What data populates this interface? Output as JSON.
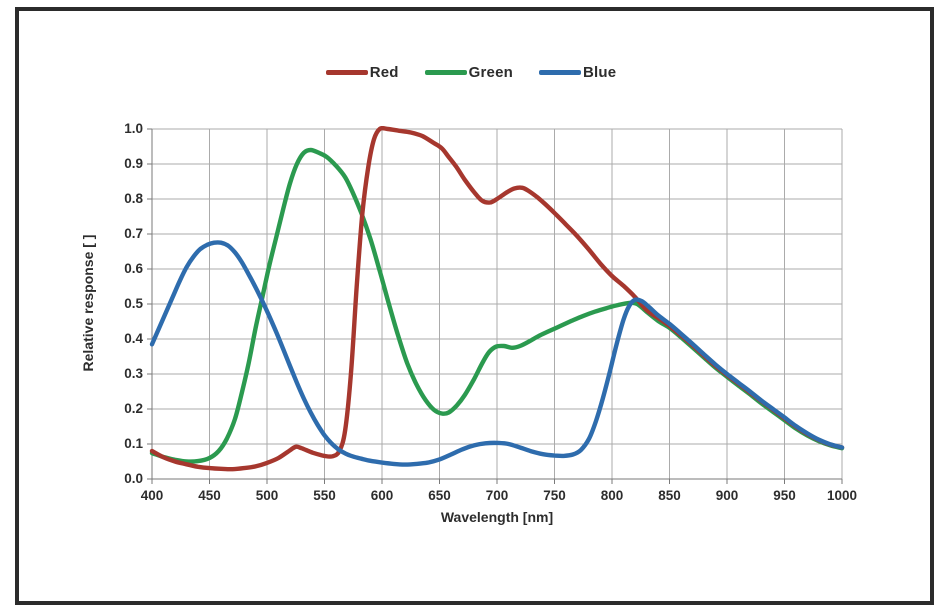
{
  "style": {
    "background": "#ffffff",
    "frame_border": "#2b2b2b",
    "grid_color": "#ababab",
    "axis_color": "#7a7a7a",
    "text_color": "#2d2d2d"
  },
  "chart_data": {
    "type": "line",
    "title": "",
    "xlabel": "Wavelength [nm]",
    "ylabel": "Relative response [ ]",
    "xlim": [
      400,
      1000
    ],
    "ylim": [
      0.0,
      1.0
    ],
    "x_ticks": [
      400,
      450,
      500,
      550,
      600,
      650,
      700,
      750,
      800,
      850,
      900,
      950,
      1000
    ],
    "y_tick_labels": [
      "0.0",
      "0.1",
      "0.2",
      "0.3",
      "0.4",
      "0.5",
      "0.6",
      "0.7",
      "0.8",
      "0.9",
      "1.0"
    ],
    "grid": true,
    "legend_position": "top-center",
    "draw_order": [
      "Green",
      "Red",
      "Blue"
    ],
    "series": [
      {
        "name": "Red",
        "color": "#a6372e",
        "points": [
          [
            400,
            0.08
          ],
          [
            410,
            0.062
          ],
          [
            420,
            0.05
          ],
          [
            430,
            0.042
          ],
          [
            440,
            0.035
          ],
          [
            450,
            0.031
          ],
          [
            460,
            0.029
          ],
          [
            470,
            0.028
          ],
          [
            480,
            0.031
          ],
          [
            490,
            0.036
          ],
          [
            500,
            0.046
          ],
          [
            510,
            0.06
          ],
          [
            520,
            0.082
          ],
          [
            525,
            0.092
          ],
          [
            530,
            0.088
          ],
          [
            540,
            0.075
          ],
          [
            550,
            0.066
          ],
          [
            557,
            0.065
          ],
          [
            563,
            0.08
          ],
          [
            568,
            0.14
          ],
          [
            573,
            0.3
          ],
          [
            578,
            0.55
          ],
          [
            583,
            0.76
          ],
          [
            588,
            0.89
          ],
          [
            593,
            0.97
          ],
          [
            598,
            1.0
          ],
          [
            605,
            1.0
          ],
          [
            615,
            0.995
          ],
          [
            625,
            0.99
          ],
          [
            635,
            0.98
          ],
          [
            645,
            0.96
          ],
          [
            652,
            0.945
          ],
          [
            658,
            0.92
          ],
          [
            665,
            0.89
          ],
          [
            672,
            0.855
          ],
          [
            680,
            0.82
          ],
          [
            687,
            0.795
          ],
          [
            694,
            0.79
          ],
          [
            700,
            0.8
          ],
          [
            708,
            0.818
          ],
          [
            715,
            0.83
          ],
          [
            722,
            0.832
          ],
          [
            728,
            0.822
          ],
          [
            735,
            0.805
          ],
          [
            742,
            0.785
          ],
          [
            750,
            0.76
          ],
          [
            760,
            0.727
          ],
          [
            770,
            0.693
          ],
          [
            780,
            0.655
          ],
          [
            790,
            0.615
          ],
          [
            800,
            0.58
          ],
          [
            810,
            0.552
          ],
          [
            820,
            0.52
          ],
          [
            830,
            0.483
          ],
          [
            840,
            0.46
          ],
          [
            850,
            0.437
          ],
          [
            860,
            0.41
          ],
          [
            870,
            0.382
          ],
          [
            880,
            0.352
          ],
          [
            890,
            0.323
          ],
          [
            900,
            0.297
          ],
          [
            910,
            0.272
          ],
          [
            920,
            0.247
          ],
          [
            930,
            0.222
          ],
          [
            940,
            0.198
          ],
          [
            950,
            0.173
          ],
          [
            960,
            0.149
          ],
          [
            970,
            0.128
          ],
          [
            980,
            0.111
          ],
          [
            990,
            0.098
          ],
          [
            1000,
            0.09
          ]
        ]
      },
      {
        "name": "Green",
        "color": "#2b9a4f",
        "points": [
          [
            400,
            0.074
          ],
          [
            410,
            0.063
          ],
          [
            420,
            0.055
          ],
          [
            430,
            0.05
          ],
          [
            440,
            0.051
          ],
          [
            450,
            0.06
          ],
          [
            458,
            0.08
          ],
          [
            465,
            0.115
          ],
          [
            472,
            0.17
          ],
          [
            478,
            0.245
          ],
          [
            484,
            0.33
          ],
          [
            490,
            0.43
          ],
          [
            496,
            0.52
          ],
          [
            502,
            0.61
          ],
          [
            508,
            0.69
          ],
          [
            514,
            0.77
          ],
          [
            520,
            0.845
          ],
          [
            526,
            0.9
          ],
          [
            532,
            0.932
          ],
          [
            538,
            0.94
          ],
          [
            545,
            0.932
          ],
          [
            552,
            0.92
          ],
          [
            560,
            0.895
          ],
          [
            568,
            0.862
          ],
          [
            575,
            0.815
          ],
          [
            582,
            0.76
          ],
          [
            590,
            0.685
          ],
          [
            598,
            0.595
          ],
          [
            606,
            0.5
          ],
          [
            614,
            0.41
          ],
          [
            622,
            0.33
          ],
          [
            630,
            0.27
          ],
          [
            638,
            0.225
          ],
          [
            645,
            0.198
          ],
          [
            652,
            0.187
          ],
          [
            658,
            0.19
          ],
          [
            665,
            0.21
          ],
          [
            672,
            0.24
          ],
          [
            680,
            0.285
          ],
          [
            687,
            0.33
          ],
          [
            693,
            0.362
          ],
          [
            699,
            0.378
          ],
          [
            706,
            0.38
          ],
          [
            713,
            0.375
          ],
          [
            720,
            0.38
          ],
          [
            728,
            0.393
          ],
          [
            736,
            0.408
          ],
          [
            745,
            0.422
          ],
          [
            755,
            0.437
          ],
          [
            765,
            0.452
          ],
          [
            775,
            0.466
          ],
          [
            785,
            0.478
          ],
          [
            795,
            0.488
          ],
          [
            805,
            0.497
          ],
          [
            815,
            0.503
          ],
          [
            822,
            0.5
          ],
          [
            830,
            0.478
          ],
          [
            840,
            0.452
          ],
          [
            850,
            0.432
          ],
          [
            860,
            0.405
          ],
          [
            870,
            0.376
          ],
          [
            880,
            0.347
          ],
          [
            890,
            0.318
          ],
          [
            900,
            0.292
          ],
          [
            910,
            0.267
          ],
          [
            920,
            0.242
          ],
          [
            930,
            0.216
          ],
          [
            940,
            0.192
          ],
          [
            950,
            0.168
          ],
          [
            960,
            0.144
          ],
          [
            970,
            0.124
          ],
          [
            980,
            0.108
          ],
          [
            990,
            0.096
          ],
          [
            1000,
            0.088
          ]
        ]
      },
      {
        "name": "Blue",
        "color": "#2e6cad",
        "points": [
          [
            400,
            0.385
          ],
          [
            406,
            0.43
          ],
          [
            412,
            0.475
          ],
          [
            418,
            0.52
          ],
          [
            424,
            0.565
          ],
          [
            430,
            0.605
          ],
          [
            436,
            0.635
          ],
          [
            442,
            0.657
          ],
          [
            448,
            0.669
          ],
          [
            454,
            0.675
          ],
          [
            460,
            0.675
          ],
          [
            466,
            0.667
          ],
          [
            472,
            0.648
          ],
          [
            478,
            0.62
          ],
          [
            484,
            0.585
          ],
          [
            490,
            0.548
          ],
          [
            496,
            0.508
          ],
          [
            502,
            0.465
          ],
          [
            508,
            0.42
          ],
          [
            514,
            0.372
          ],
          [
            520,
            0.323
          ],
          [
            526,
            0.275
          ],
          [
            532,
            0.23
          ],
          [
            538,
            0.19
          ],
          [
            544,
            0.155
          ],
          [
            550,
            0.125
          ],
          [
            556,
            0.102
          ],
          [
            562,
            0.085
          ],
          [
            568,
            0.073
          ],
          [
            575,
            0.064
          ],
          [
            582,
            0.058
          ],
          [
            590,
            0.052
          ],
          [
            600,
            0.047
          ],
          [
            610,
            0.043
          ],
          [
            620,
            0.041
          ],
          [
            630,
            0.043
          ],
          [
            640,
            0.047
          ],
          [
            650,
            0.056
          ],
          [
            660,
            0.07
          ],
          [
            670,
            0.085
          ],
          [
            680,
            0.096
          ],
          [
            690,
            0.102
          ],
          [
            700,
            0.103
          ],
          [
            710,
            0.1
          ],
          [
            720,
            0.09
          ],
          [
            730,
            0.079
          ],
          [
            740,
            0.071
          ],
          [
            750,
            0.067
          ],
          [
            758,
            0.066
          ],
          [
            766,
            0.07
          ],
          [
            773,
            0.083
          ],
          [
            780,
            0.115
          ],
          [
            786,
            0.165
          ],
          [
            792,
            0.23
          ],
          [
            798,
            0.305
          ],
          [
            804,
            0.385
          ],
          [
            810,
            0.455
          ],
          [
            815,
            0.495
          ],
          [
            820,
            0.512
          ],
          [
            826,
            0.508
          ],
          [
            832,
            0.492
          ],
          [
            840,
            0.468
          ],
          [
            850,
            0.443
          ],
          [
            860,
            0.415
          ],
          [
            870,
            0.386
          ],
          [
            880,
            0.356
          ],
          [
            890,
            0.327
          ],
          [
            900,
            0.3
          ],
          [
            910,
            0.275
          ],
          [
            920,
            0.25
          ],
          [
            930,
            0.224
          ],
          [
            940,
            0.2
          ],
          [
            950,
            0.176
          ],
          [
            960,
            0.151
          ],
          [
            970,
            0.13
          ],
          [
            980,
            0.112
          ],
          [
            990,
            0.099
          ],
          [
            1000,
            0.09
          ]
        ]
      }
    ]
  }
}
